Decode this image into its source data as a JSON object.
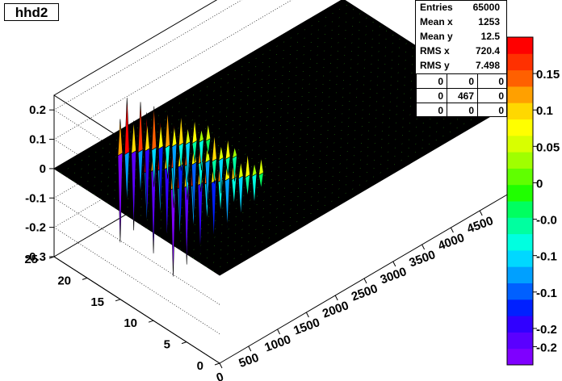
{
  "chart_data": {
    "type": "surface",
    "title": "hhd2",
    "x_ticks": [
      "0",
      "500",
      "1000",
      "1500",
      "2000",
      "2500",
      "3000",
      "3500",
      "4000",
      "4500"
    ],
    "y_ticks": [
      "0",
      "5",
      "10",
      "15",
      "20",
      "25"
    ],
    "z_ticks": [
      "-0.3",
      "-0.2",
      "-0.1",
      "0",
      "0.1",
      "0.2"
    ],
    "xlim": [
      0,
      5000
    ],
    "ylim": [
      0,
      25
    ],
    "zlim": [
      -0.3,
      0.25
    ],
    "palette_ticks": [
      "-0.2",
      "-0.2",
      "-0.1",
      "-0.1",
      "-0.0",
      "0",
      "0.05",
      "0.1",
      "0.15"
    ],
    "palette_range": [
      -0.25,
      0.2
    ],
    "palette_colors": [
      "#7f00ff",
      "#5a00ff",
      "#3000ff",
      "#0020ff",
      "#0060ff",
      "#00a0ff",
      "#00d8ff",
      "#00ffe0",
      "#00ffa0",
      "#00ff60",
      "#20ff00",
      "#60ff00",
      "#a0ff00",
      "#d8ff00",
      "#ffff00",
      "#ffd800",
      "#ffa000",
      "#ff6000",
      "#ff3000",
      "#ff0000"
    ],
    "stats": {
      "entries_label": "Entries",
      "entries": "65000",
      "mean_x_label": "Mean x",
      "mean_x": "1253",
      "mean_y_label": "Mean y",
      "mean_y": "12.5",
      "rms_x_label": "RMS x",
      "rms_x": "720.4",
      "rms_y_label": "RMS y",
      "rms_y": "7.498",
      "grid": [
        [
          "0",
          "0",
          "0"
        ],
        [
          "0",
          "467",
          "0"
        ],
        [
          "0",
          "0",
          "0"
        ]
      ]
    },
    "spikes": {
      "x_range": [
        800,
        1800
      ],
      "peak_values": [
        0.2,
        -0.3
      ],
      "surface_level": 0
    },
    "grid": true
  }
}
